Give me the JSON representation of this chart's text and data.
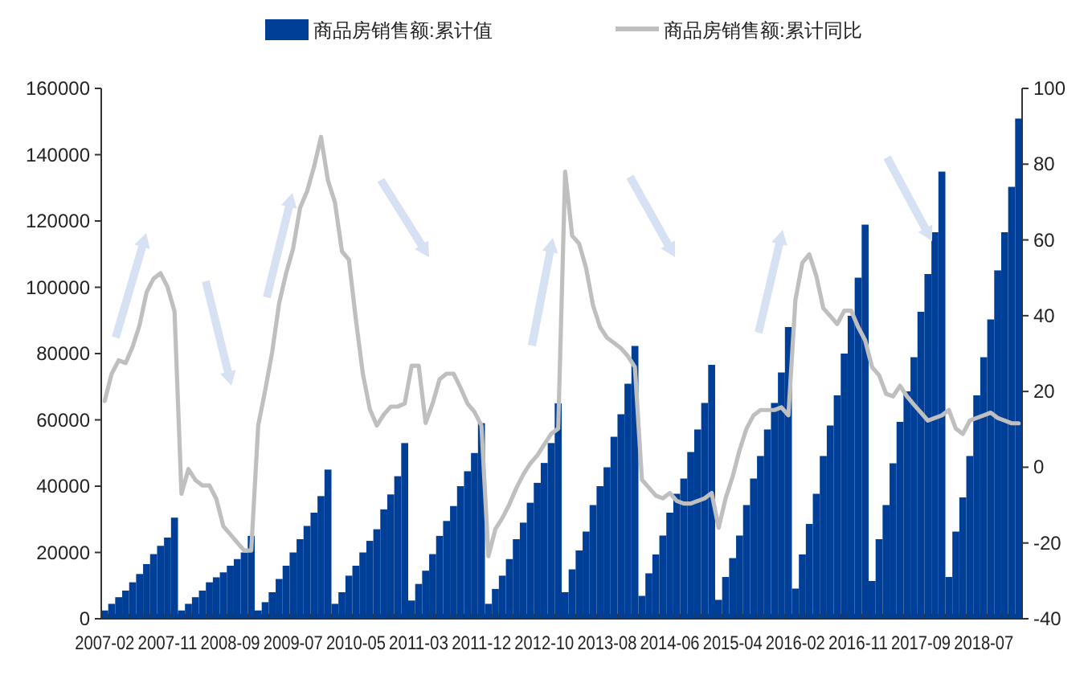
{
  "chart_data": {
    "type": "bar",
    "categories": [
      "2007-02",
      null,
      null,
      null,
      null,
      null,
      null,
      null,
      null,
      "2007-11",
      null,
      null,
      null,
      null,
      null,
      null,
      null,
      null,
      "2008-09",
      null,
      null,
      null,
      null,
      null,
      null,
      null,
      null,
      "2009-07",
      null,
      null,
      null,
      null,
      null,
      null,
      null,
      null,
      "2010-05",
      null,
      null,
      null,
      null,
      null,
      null,
      null,
      null,
      "2011-03",
      null,
      null,
      null,
      null,
      null,
      null,
      null,
      null,
      "2011-12",
      null,
      null,
      null,
      null,
      null,
      null,
      null,
      null,
      "2012-10",
      null,
      null,
      null,
      null,
      null,
      null,
      null,
      null,
      "2013-08",
      null,
      null,
      null,
      null,
      null,
      null,
      null,
      null,
      "2014-06",
      null,
      null,
      null,
      null,
      null,
      null,
      null,
      null,
      "2015-04",
      null,
      null,
      null,
      null,
      null,
      null,
      null,
      null,
      "2016-02",
      null,
      null,
      null,
      null,
      null,
      null,
      null,
      null,
      "2016-11",
      null,
      null,
      null,
      null,
      null,
      null,
      null,
      null,
      "2017-09",
      null,
      null,
      null,
      null,
      null,
      null,
      null,
      null,
      "2018-07",
      null,
      null,
      null,
      null,
      null
    ],
    "series": [
      {
        "name": "商品房销售额:累计值",
        "color": "#003f98",
        "values": [
          2500,
          4500,
          6500,
          8500,
          11000,
          13500,
          16500,
          19500,
          22000,
          24500,
          30500,
          2500,
          4500,
          6500,
          8500,
          11000,
          12500,
          14000,
          16000,
          18000,
          20000,
          25000,
          2500,
          5000,
          8000,
          12000,
          16000,
          20000,
          24000,
          28000,
          32000,
          37000,
          45000,
          4500,
          8000,
          13000,
          16000,
          20000,
          23500,
          27000,
          33000,
          37500,
          43000,
          53000,
          5500,
          10500,
          14500,
          19500,
          25000,
          29500,
          34000,
          40000,
          44500,
          50000,
          59000,
          4500,
          9000,
          13000,
          18000,
          24000,
          29000,
          35000,
          41000,
          47000,
          53000,
          65000,
          8000,
          14900,
          20600,
          26300,
          34300,
          40000,
          45700,
          54900,
          61700,
          70900,
          82300,
          6900,
          13700,
          19400,
          25100,
          32000,
          37700,
          42300,
          50300,
          57100,
          65100,
          76600,
          5700,
          12600,
          18300,
          25100,
          34300,
          42300,
          49100,
          57100,
          65100,
          74300,
          88000,
          9100,
          19400,
          28600,
          37700,
          49100,
          58300,
          67400,
          80000,
          91400,
          102900,
          118900,
          11400,
          24000,
          34300,
          46900,
          59400,
          68600,
          78900,
          92600,
          104000,
          116600,
          134900,
          12600,
          26300,
          36600,
          49100,
          67400,
          78900,
          90300,
          105100,
          116600,
          130300,
          150900
        ]
      },
      {
        "name": "商品房销售额:累计同比",
        "type": "line",
        "axis": "y2",
        "color": "#bfbfbf",
        "values": [
          17.5,
          24.7,
          28.2,
          27.5,
          31.8,
          37.6,
          46.2,
          49.8,
          51.2,
          47.6,
          41.2,
          -7,
          -0.5,
          -3.4,
          -4.8,
          -4.8,
          -8.4,
          -15.6,
          -17.7,
          -19.9,
          -22,
          -22,
          11,
          20.3,
          30.4,
          43.3,
          51.2,
          57.7,
          68.5,
          72.8,
          79.3,
          87.2,
          75.7,
          69.9,
          57,
          54.8,
          39,
          24.7,
          15.3,
          11,
          13.9,
          16,
          16,
          16.8,
          26.8,
          26.8,
          11.7,
          16.8,
          23.2,
          24.7,
          24.7,
          21,
          16.8,
          14.6,
          11,
          -23.5,
          -16.3,
          -13.4,
          -9.8,
          -5.5,
          -1.9,
          1,
          3.1,
          6,
          8.8,
          10.2,
          78,
          61.1,
          59,
          52.6,
          42.7,
          37,
          34.2,
          32.8,
          31.4,
          29.3,
          26.4,
          -3.3,
          -5.4,
          -7.5,
          -8.2,
          -6.8,
          -8.9,
          -9.6,
          -9.6,
          -8.9,
          -8.2,
          -6.8,
          -16,
          -8.2,
          -2.5,
          4.5,
          10.2,
          13.7,
          15.1,
          15.1,
          15.1,
          15.8,
          13.7,
          44.1,
          54,
          56.2,
          50.5,
          42,
          39.9,
          37.8,
          41.3,
          41.3,
          37,
          33.5,
          26.4,
          24.3,
          19.4,
          18.7,
          21.5,
          18.7,
          16.5,
          14.4,
          12.3,
          13,
          13.7,
          15.1,
          10.2,
          8.8,
          12.3,
          13,
          13.7,
          14.4,
          13,
          12.3,
          11.6,
          11.6
        ]
      }
    ],
    "ylim": [
      0,
      160000
    ],
    "yticks": [
      0,
      20000,
      40000,
      60000,
      80000,
      100000,
      120000,
      140000,
      160000
    ],
    "y2lim": [
      -40,
      100
    ],
    "y2ticks": [
      -40,
      -20,
      0,
      20,
      40,
      60,
      80,
      100
    ],
    "legend": "top"
  }
}
